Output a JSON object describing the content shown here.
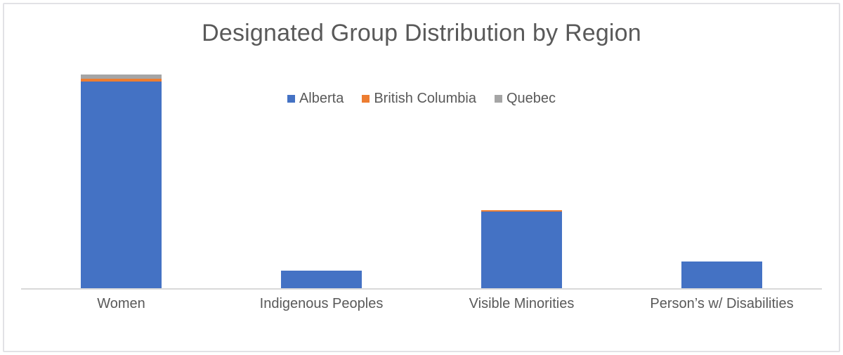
{
  "window": {
    "background": "#ffffff",
    "frame_border_color": "#e2e2e6"
  },
  "chart_data": {
    "type": "bar",
    "stacked": true,
    "title": "Designated Group Distribution by Region",
    "categories": [
      "Women",
      "Indigenous Peoples",
      "Visible Minorities",
      "Person’s w/ Disabilities"
    ],
    "series": [
      {
        "name": "Alberta",
        "color": "#4472C4",
        "values": [
          294,
          25,
          109,
          38
        ]
      },
      {
        "name": "British Columbia",
        "color": "#ED7D31",
        "values": [
          4,
          0,
          2,
          0
        ]
      },
      {
        "name": "Quebec",
        "color": "#A5A5A5",
        "values": [
          6,
          0,
          0,
          0
        ]
      }
    ],
    "ylim": [
      0,
      320
    ],
    "y_axis_visible": false,
    "gridlines": false,
    "legend_position": "top-center",
    "axis_line_color": "#d9d9d9",
    "text_color": "#595959",
    "note_units": "no value axis shown; values estimated in relative units"
  }
}
